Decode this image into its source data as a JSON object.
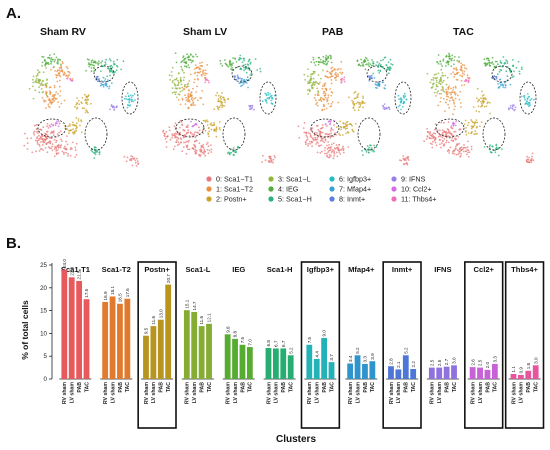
{
  "panel_a": {
    "letter": "A.",
    "umaps": [
      {
        "title": "Sham RV"
      },
      {
        "title": "Sham LV"
      },
      {
        "title": "PAB"
      },
      {
        "title": "TAC"
      }
    ],
    "legend": [
      {
        "label": "0: Sca1−T1",
        "color": "#e8797a"
      },
      {
        "label": "1: Sca1−T2",
        "color": "#ea8f3f"
      },
      {
        "label": "2: Postn+",
        "color": "#c9a227"
      },
      {
        "label": "3: Sca1−L",
        "color": "#8fb63c"
      },
      {
        "label": "4: IEG",
        "color": "#4fae3c"
      },
      {
        "label": "5: Sca1−H",
        "color": "#27b37a"
      },
      {
        "label": "6: Igfbp3+",
        "color": "#24bcc4"
      },
      {
        "label": "7: Mfap4+",
        "color": "#3aa0d6"
      },
      {
        "label": "8: Inmt+",
        "color": "#5b7fe0"
      },
      {
        "label": "9: IFNS",
        "color": "#9b7fe6"
      },
      {
        "label": "10: Ccl2+",
        "color": "#d36fe0"
      },
      {
        "label": "11: Thbs4+",
        "color": "#ef6fb8"
      }
    ]
  },
  "panel_b": {
    "letter": "B."
  },
  "chart_data": {
    "type": "bar",
    "ylabel": "% of total cells",
    "xlabel": "Clusters",
    "ylim": [
      0,
      25
    ],
    "yticks": [
      0,
      5,
      10,
      15,
      20,
      25
    ],
    "conditions": [
      "RV sham",
      "LV sham",
      "PAB",
      "TAC"
    ],
    "boxed_clusters": [
      "Postn+",
      "Igfbp3+",
      "Inmt+",
      "Ccl2+",
      "Thbs4+"
    ],
    "groups": [
      {
        "name": "Sca1-T1",
        "color": "#e8595b",
        "values": [
          24.0,
          22.3,
          21.5,
          17.5
        ]
      },
      {
        "name": "Sca1-T2",
        "color": "#e17a2c",
        "values": [
          16.9,
          18.1,
          16.5,
          17.6
        ]
      },
      {
        "name": "Postn+",
        "color": "#b7951f",
        "values": [
          9.5,
          11.6,
          13.0,
          20.7
        ]
      },
      {
        "name": "Sca1-L",
        "color": "#86ad33",
        "values": [
          15.1,
          14.7,
          11.6,
          12.1
        ]
      },
      {
        "name": "IEG",
        "color": "#55ac30",
        "values": [
          9.8,
          8.8,
          7.5,
          7.0
        ]
      },
      {
        "name": "Sca1-H",
        "color": "#28ad70",
        "values": [
          6.8,
          6.7,
          6.7,
          5.2
        ]
      },
      {
        "name": "Igfbp3+",
        "color": "#22b2b8",
        "values": [
          7.5,
          4.4,
          9.0,
          3.7
        ]
      },
      {
        "name": "Mfap4+",
        "color": "#2f94cc",
        "values": [
          3.4,
          5.2,
          3.3,
          3.9
        ]
      },
      {
        "name": "Inmt+",
        "color": "#4d76d6",
        "values": [
          2.8,
          2.1,
          5.2,
          2.2
        ]
      },
      {
        "name": "IFNS",
        "color": "#8f72de",
        "values": [
          2.5,
          2.5,
          2.7,
          3.0
        ]
      },
      {
        "name": "Ccl2+",
        "color": "#c661d6",
        "values": [
          2.6,
          2.5,
          2.0,
          3.3
        ]
      },
      {
        "name": "Thbs4+",
        "color": "#e5569e",
        "values": [
          1.1,
          0.9,
          1.8,
          3.0
        ]
      }
    ]
  }
}
